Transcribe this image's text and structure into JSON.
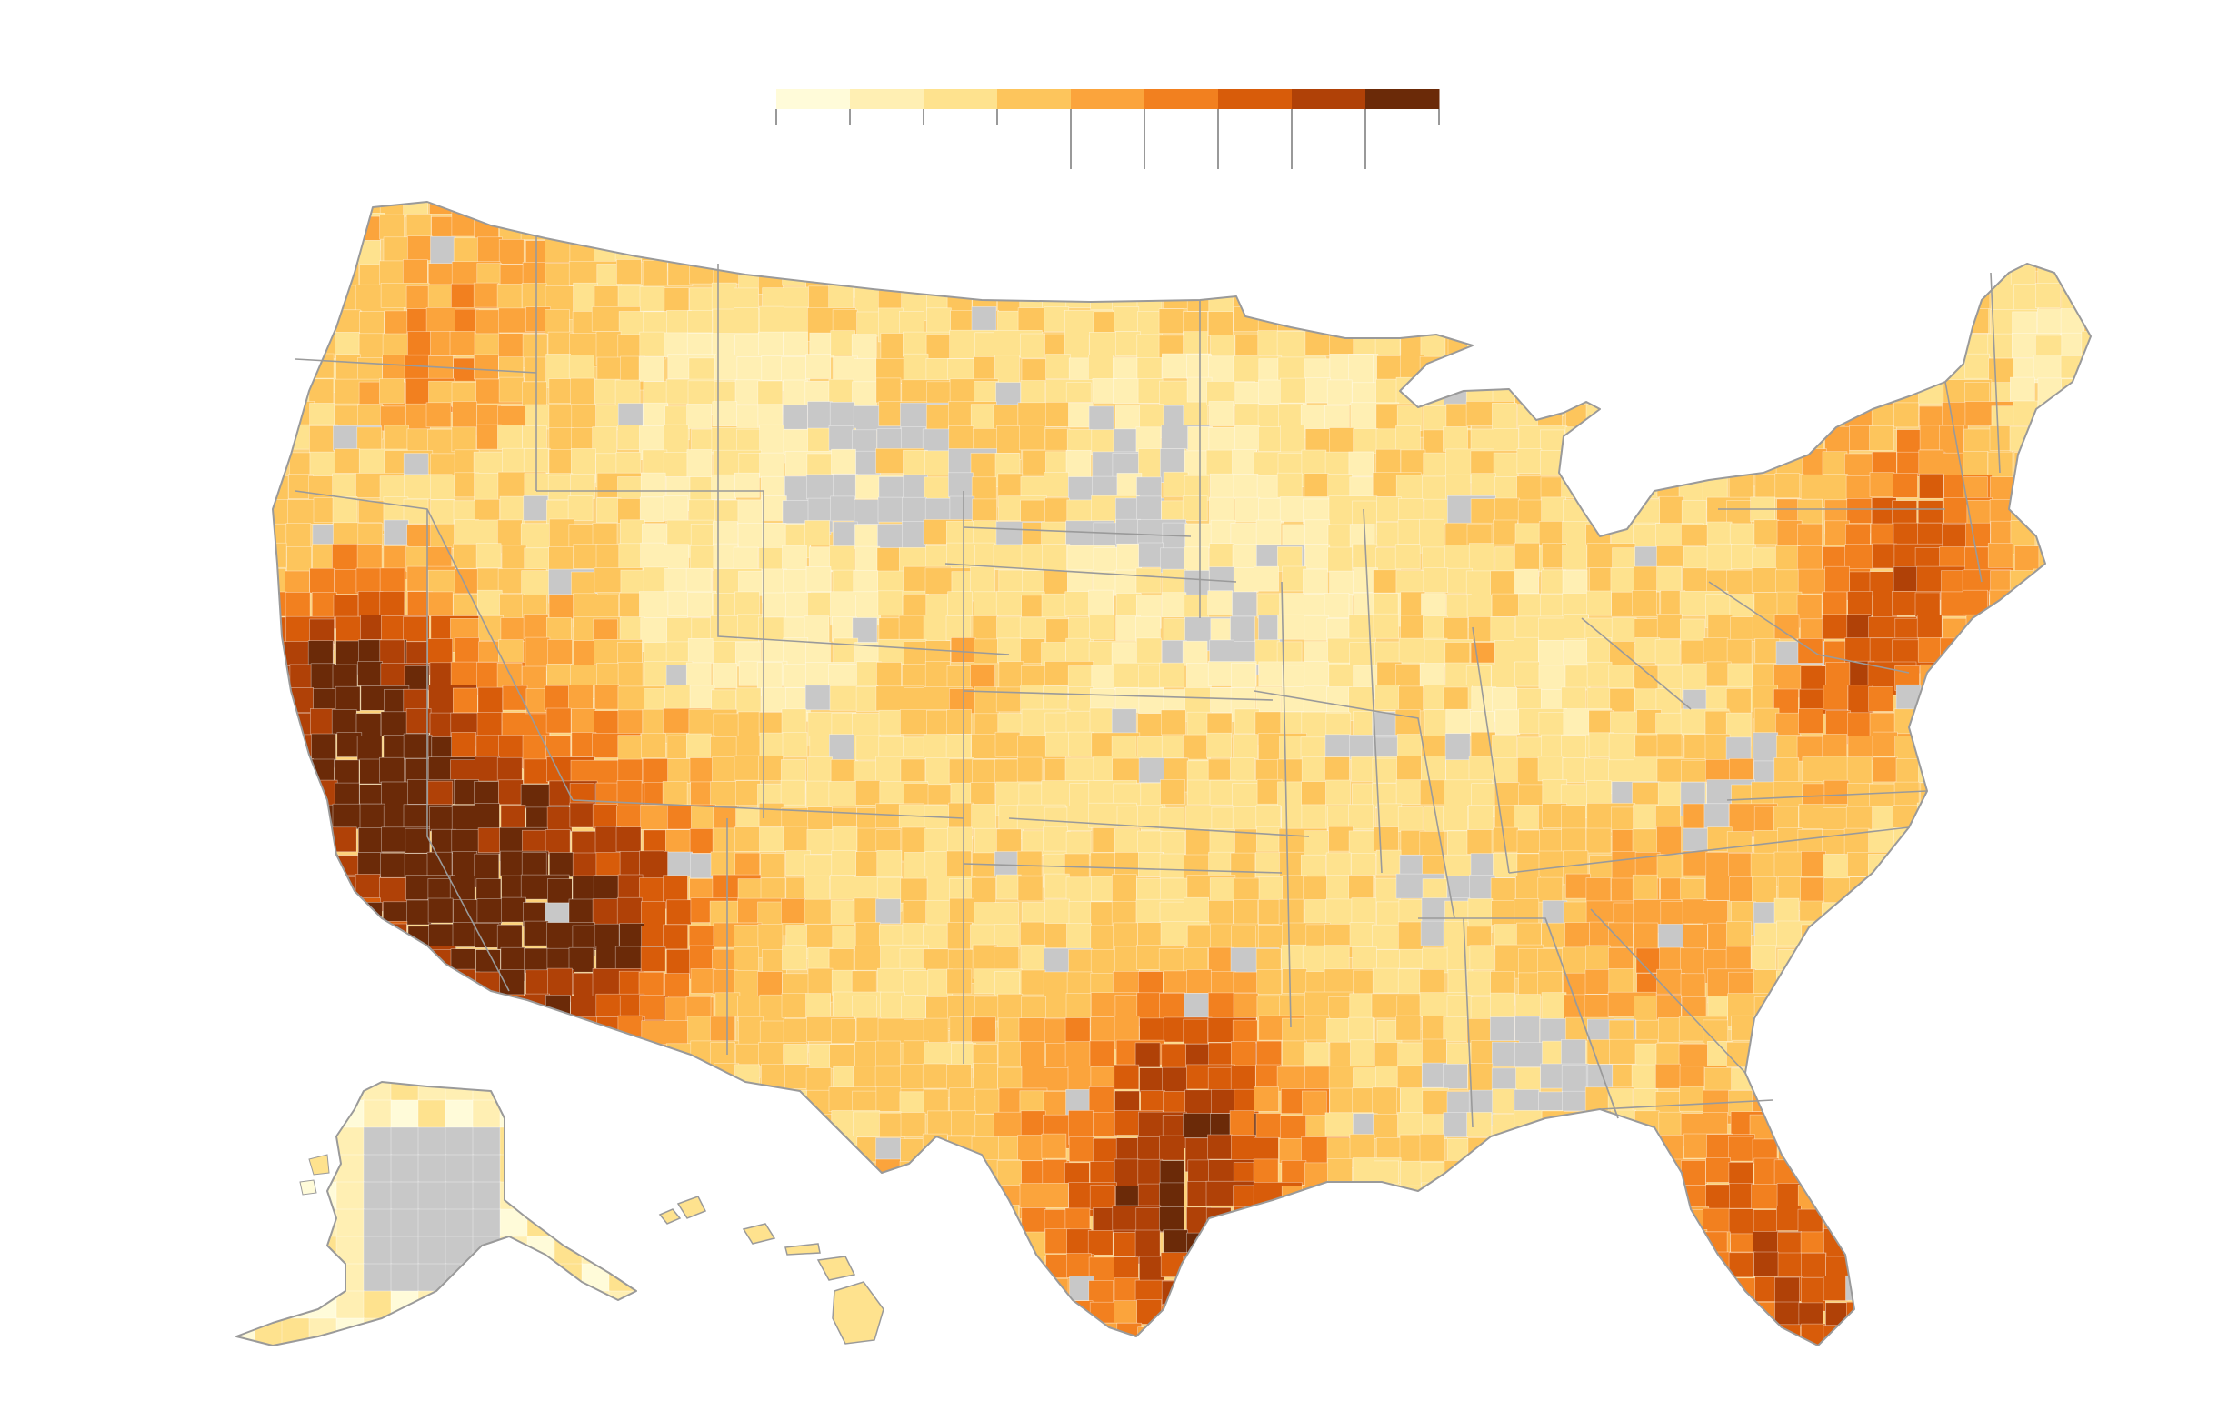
{
  "legend": {
    "colors": [
      "#fffbd9",
      "#ffefb3",
      "#fee28e",
      "#fdc55c",
      "#fba43c",
      "#f2801f",
      "#d85c0a",
      "#b04107",
      "#6b2a08"
    ],
    "tick_labels": [],
    "no_data_color": "#c8c8c8"
  },
  "map": {
    "stroke_color": "#9a9a9a",
    "regions": [
      "contiguous-us",
      "alaska",
      "hawaii"
    ]
  }
}
